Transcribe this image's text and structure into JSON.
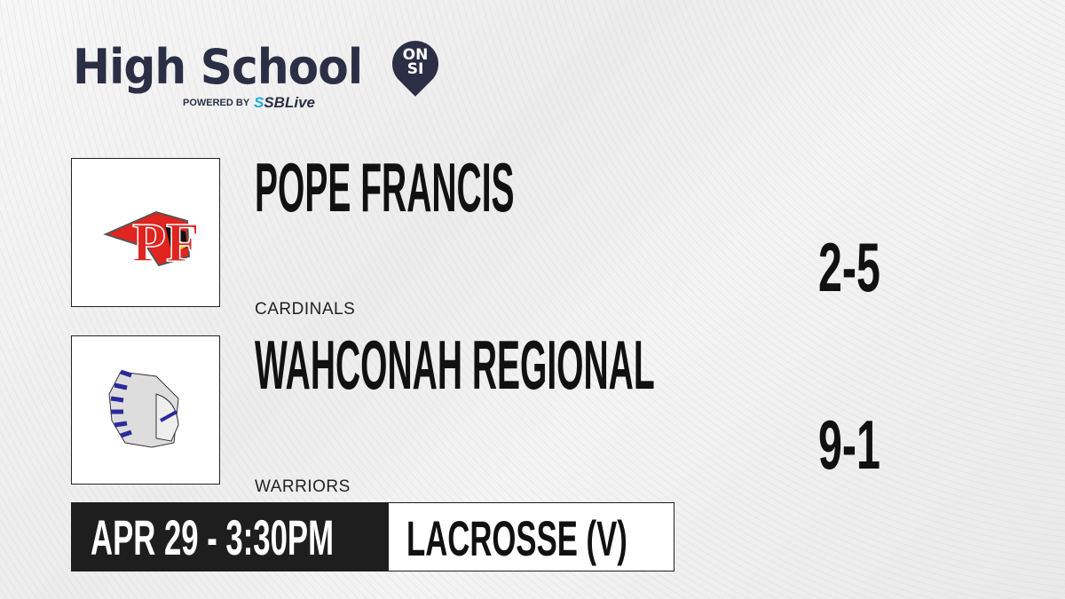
{
  "brand": {
    "title": "High School",
    "badge": "ON SI",
    "powered_by": "POWERED BY",
    "partner_prefix": "S",
    "partner": "SBLive"
  },
  "teams": [
    {
      "name": "POPE FRANCIS",
      "mascot": "CARDINALS",
      "record": "2-5",
      "logo": "cardinal-pf-logo",
      "colors": {
        "primary": "#e0241f",
        "secondary": "#f5c400"
      }
    },
    {
      "name": "WAHCONAH REGIONAL",
      "mascot": "WARRIORS",
      "record": "9-1",
      "logo": "warrior-headdress-logo",
      "colors": {
        "primary": "#2a2a9a"
      }
    }
  ],
  "game": {
    "datetime": "APR 29 - 3:30PM",
    "sport": "LACROSSE (V)"
  }
}
